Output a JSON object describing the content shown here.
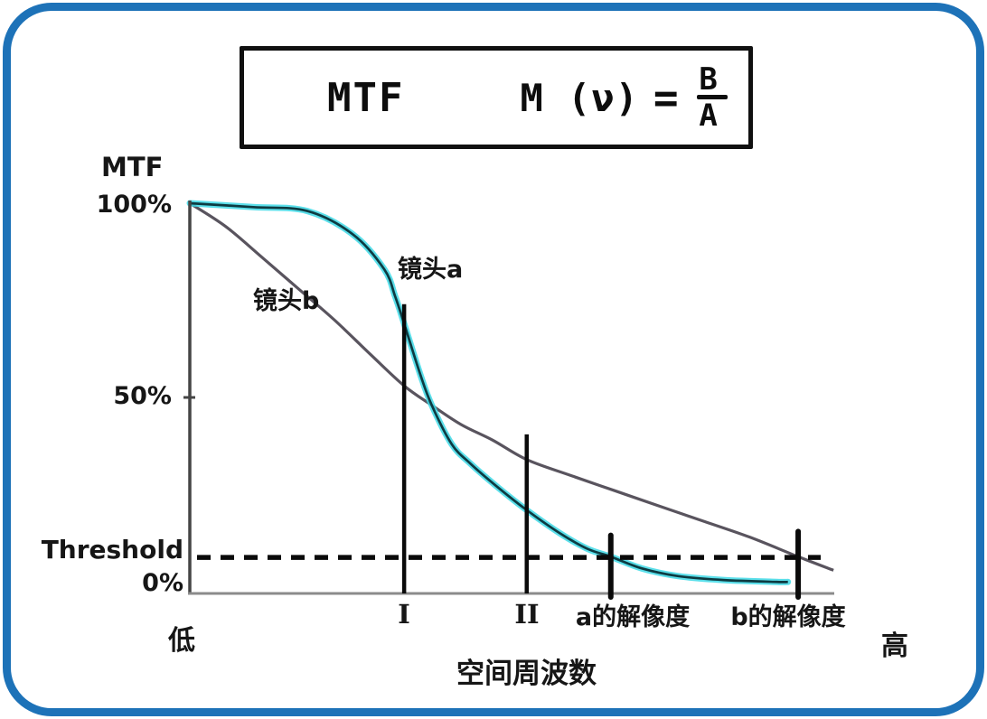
{
  "formula": {
    "name": "MTF",
    "lhs": "M (ν)",
    "eq": "=",
    "numerator": "B",
    "denominator": "A"
  },
  "chart_data": {
    "type": "line",
    "xlabel": "空间周波数",
    "ylabel": "MTF",
    "x_axis_ends": [
      "低",
      "高"
    ],
    "y_ticks": [
      "100%",
      "50%",
      "0%"
    ],
    "ylim": [
      0,
      100
    ],
    "x_range_normalized": [
      0,
      1
    ],
    "grid": false,
    "legend_position": "inline-curve-labels",
    "series": [
      {
        "name": "镜头a",
        "style": "cyan glow with dark core, sigmoid drop",
        "color_glow": "#3ed9e6",
        "color_core": "#0d3b42",
        "points": [
          [
            0.0,
            100
          ],
          [
            0.099,
            99
          ],
          [
            0.183,
            98
          ],
          [
            0.254,
            92
          ],
          [
            0.303,
            83
          ],
          [
            0.32,
            76
          ],
          [
            0.334,
            69
          ],
          [
            0.359,
            56
          ],
          [
            0.377,
            48
          ],
          [
            0.408,
            38
          ],
          [
            0.437,
            33
          ],
          [
            0.479,
            27
          ],
          [
            0.525,
            21
          ],
          [
            0.577,
            15
          ],
          [
            0.62,
            11
          ],
          [
            0.656,
            9
          ],
          [
            0.704,
            6
          ],
          [
            0.761,
            4
          ],
          [
            0.831,
            3
          ],
          [
            0.915,
            2.5
          ],
          [
            0.932,
            2.5
          ]
        ]
      },
      {
        "name": "镜头b",
        "style": "gray gentle descent",
        "color": "#59545e",
        "points": [
          [
            0.0,
            100
          ],
          [
            0.056,
            94
          ],
          [
            0.113,
            86
          ],
          [
            0.169,
            78
          ],
          [
            0.225,
            70
          ],
          [
            0.282,
            61
          ],
          [
            0.334,
            53
          ],
          [
            0.377,
            48
          ],
          [
            0.423,
            43
          ],
          [
            0.472,
            39
          ],
          [
            0.525,
            34
          ],
          [
            0.592,
            30
          ],
          [
            0.662,
            26
          ],
          [
            0.732,
            22
          ],
          [
            0.803,
            18
          ],
          [
            0.873,
            14
          ],
          [
            0.948,
            9
          ],
          [
            1.003,
            5.5
          ]
        ]
      }
    ],
    "threshold": {
      "label": "Threshold",
      "mtf_percent": 8.8
    },
    "markers": [
      {
        "label": "I",
        "type": "vline",
        "x": 0.334,
        "top_mtf": 74
      },
      {
        "label": "II",
        "type": "vline",
        "x": 0.525,
        "top_mtf": 40.5
      },
      {
        "label": "a的解像度",
        "type": "tick",
        "x": 0.656,
        "from_mtf": -1.4,
        "to_mtf": 14.5
      },
      {
        "label": "b的解像度",
        "type": "tick",
        "x": 0.948,
        "from_mtf": -1.4,
        "to_mtf": 15.5
      }
    ]
  },
  "colors": {
    "frame_border": "#1d72b8",
    "axis_y": "#454545",
    "axis_x": "#8b8b8b",
    "marker_black": "#0a0a0a",
    "lens_a_glow": "#3ed9e6",
    "lens_a_core": "#0d3b42",
    "lens_b": "#59545e"
  }
}
